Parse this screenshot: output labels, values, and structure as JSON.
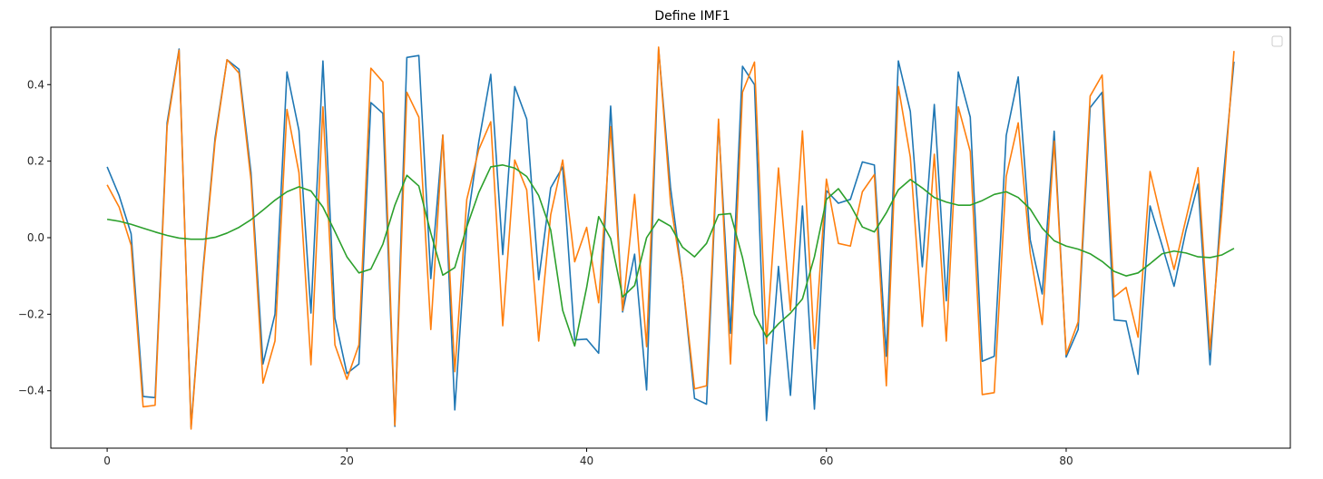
{
  "chart_data": {
    "type": "line",
    "title": "Define IMF1",
    "xlabel": "",
    "ylabel": "",
    "xlim": [
      -4.7,
      98.7
    ],
    "ylim": [
      -0.55,
      0.55
    ],
    "xticks": [
      0,
      20,
      40,
      60,
      80
    ],
    "xtick_labels": [
      "0",
      "20",
      "40",
      "60",
      "80"
    ],
    "yticks": [
      -0.4,
      -0.2,
      0.0,
      0.2,
      0.4
    ],
    "ytick_labels": [
      "−0.4",
      "−0.2",
      "0.0",
      "0.2",
      "0.4"
    ],
    "grid": false,
    "legend": {
      "placement": "top-right",
      "entries": []
    },
    "x": [
      0,
      1,
      2,
      3,
      4,
      5,
      6,
      7,
      8,
      9,
      10,
      11,
      12,
      13,
      14,
      15,
      16,
      17,
      18,
      19,
      20,
      21,
      22,
      23,
      24,
      25,
      26,
      27,
      28,
      29,
      30,
      31,
      32,
      33,
      34,
      35,
      36,
      37,
      38,
      39,
      40,
      41,
      42,
      43,
      44,
      45,
      46,
      47,
      48,
      49,
      50,
      51,
      52,
      53,
      54,
      55,
      56,
      57,
      58,
      59,
      60,
      61,
      62,
      63,
      64,
      65,
      66,
      67,
      68,
      69,
      70,
      71,
      72,
      73,
      74,
      75,
      76,
      77,
      78,
      79,
      80,
      81,
      82,
      83,
      84,
      85,
      86,
      87,
      88,
      89,
      90,
      91,
      92,
      93,
      94
    ],
    "series": [
      {
        "color": "#1f77b4",
        "values": [
          0.185,
          0.11,
          0.01,
          -0.415,
          -0.418,
          0.3,
          0.493,
          -0.495,
          -0.08,
          0.26,
          0.465,
          0.44,
          0.17,
          -0.33,
          -0.2,
          0.433,
          0.28,
          -0.197,
          0.462,
          -0.21,
          -0.355,
          -0.33,
          0.353,
          0.325,
          -0.493,
          0.471,
          0.476,
          -0.107,
          0.268,
          -0.45,
          0.03,
          0.25,
          0.427,
          -0.044,
          0.395,
          0.31,
          -0.11,
          0.13,
          0.185,
          -0.267,
          -0.265,
          -0.302,
          0.344,
          -0.194,
          -0.043,
          -0.398,
          0.493,
          0.13,
          -0.11,
          -0.42,
          -0.435,
          0.3,
          -0.25,
          0.448,
          0.4,
          -0.478,
          -0.075,
          -0.412,
          0.083,
          -0.448,
          0.123,
          0.09,
          0.1,
          0.198,
          0.19,
          -0.31,
          0.462,
          0.33,
          -0.076,
          0.348,
          -0.165,
          0.433,
          0.315,
          -0.323,
          -0.31,
          0.267,
          0.42,
          -0.005,
          -0.147,
          0.278,
          -0.312,
          -0.24,
          0.34,
          0.38,
          -0.215,
          -0.218,
          -0.357,
          0.083,
          -0.02,
          -0.127,
          0.02,
          0.14,
          -0.332,
          0.12,
          0.46
        ]
      },
      {
        "color": "#ff7f0e",
        "values": [
          0.138,
          0.08,
          -0.02,
          -0.442,
          -0.438,
          0.29,
          0.49,
          -0.5,
          -0.09,
          0.25,
          0.465,
          0.43,
          0.15,
          -0.38,
          -0.27,
          0.335,
          0.17,
          -0.332,
          0.342,
          -0.28,
          -0.37,
          -0.28,
          0.443,
          0.407,
          -0.49,
          0.38,
          0.315,
          -0.24,
          0.268,
          -0.35,
          0.1,
          0.23,
          0.303,
          -0.23,
          0.203,
          0.125,
          -0.27,
          0.06,
          0.203,
          -0.063,
          0.027,
          -0.17,
          0.29,
          -0.19,
          0.113,
          -0.285,
          0.498,
          0.09,
          -0.11,
          -0.395,
          -0.387,
          0.31,
          -0.33,
          0.38,
          0.459,
          -0.277,
          0.182,
          -0.19,
          0.279,
          -0.29,
          0.153,
          -0.015,
          -0.022,
          0.12,
          0.165,
          -0.387,
          0.395,
          0.21,
          -0.232,
          0.218,
          -0.27,
          0.342,
          0.225,
          -0.41,
          -0.405,
          0.16,
          0.3,
          -0.04,
          -0.227,
          0.252,
          -0.305,
          -0.22,
          0.37,
          0.425,
          -0.155,
          -0.13,
          -0.26,
          0.173,
          0.04,
          -0.083,
          0.05,
          0.183,
          -0.292,
          0.07,
          0.488
        ]
      },
      {
        "color": "#2ca02c",
        "values": [
          0.048,
          0.043,
          0.035,
          0.025,
          0.015,
          0.006,
          -0.001,
          -0.004,
          -0.004,
          0.001,
          0.012,
          0.027,
          0.047,
          0.072,
          0.098,
          0.12,
          0.133,
          0.122,
          0.08,
          0.016,
          -0.05,
          -0.092,
          -0.082,
          -0.017,
          0.085,
          0.163,
          0.135,
          0.012,
          -0.098,
          -0.078,
          0.028,
          0.118,
          0.185,
          0.19,
          0.182,
          0.16,
          0.11,
          0.02,
          -0.19,
          -0.283,
          -0.13,
          0.055,
          -0.002,
          -0.155,
          -0.125,
          0.0,
          0.048,
          0.03,
          -0.025,
          -0.05,
          -0.015,
          0.06,
          0.063,
          -0.052,
          -0.2,
          -0.26,
          -0.225,
          -0.197,
          -0.16,
          -0.05,
          0.1,
          0.128,
          0.085,
          0.028,
          0.015,
          0.065,
          0.125,
          0.152,
          0.13,
          0.105,
          0.093,
          0.085,
          0.085,
          0.097,
          0.113,
          0.12,
          0.105,
          0.075,
          0.025,
          -0.008,
          -0.022,
          -0.03,
          -0.042,
          -0.062,
          -0.088,
          -0.1,
          -0.092,
          -0.068,
          -0.042,
          -0.035,
          -0.04,
          -0.05,
          -0.052,
          -0.045,
          -0.028
        ]
      }
    ]
  }
}
